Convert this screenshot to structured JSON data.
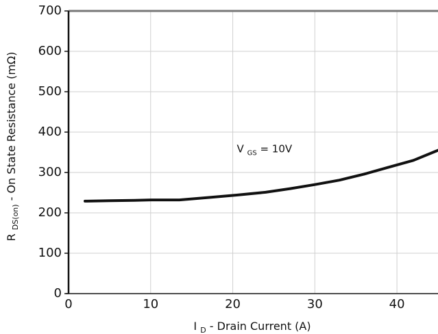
{
  "chart_data": {
    "type": "line",
    "title": "",
    "xlabel_main": "I",
    "xlabel_sub": "D",
    "xlabel_rest": " - Drain Current (A)",
    "ylabel_main": "R",
    "ylabel_sub": "DS(on)",
    "ylabel_rest": " - On State Resistance (mΩ)",
    "xlim": [
      0,
      45
    ],
    "ylim": [
      0,
      700
    ],
    "x_ticks": [
      0,
      10,
      20,
      30,
      40
    ],
    "x_tick_labels": [
      "0",
      "10",
      "20",
      "30",
      "40"
    ],
    "y_ticks": [
      0,
      100,
      200,
      300,
      400,
      500,
      600,
      700
    ],
    "y_tick_labels": [
      "0",
      "100",
      "200",
      "300",
      "400",
      "500",
      "600",
      "700"
    ],
    "grid": true,
    "annotation": {
      "main": "V",
      "sub": "GS",
      "rest": " = 10V",
      "x": 20.5,
      "y": 350
    },
    "series": [
      {
        "x": [
          2,
          5,
          8,
          10,
          13.5,
          17,
          20.5,
          24,
          27,
          30,
          33,
          36,
          39,
          42,
          45
        ],
        "y": [
          229,
          230,
          231,
          232,
          232,
          238,
          244,
          251,
          260,
          270,
          281,
          296,
          313,
          330,
          355
        ]
      }
    ],
    "colors": {
      "line": "#111111",
      "grid": "#cfcfcf",
      "axis": "#111111",
      "frame": "#777777"
    }
  }
}
